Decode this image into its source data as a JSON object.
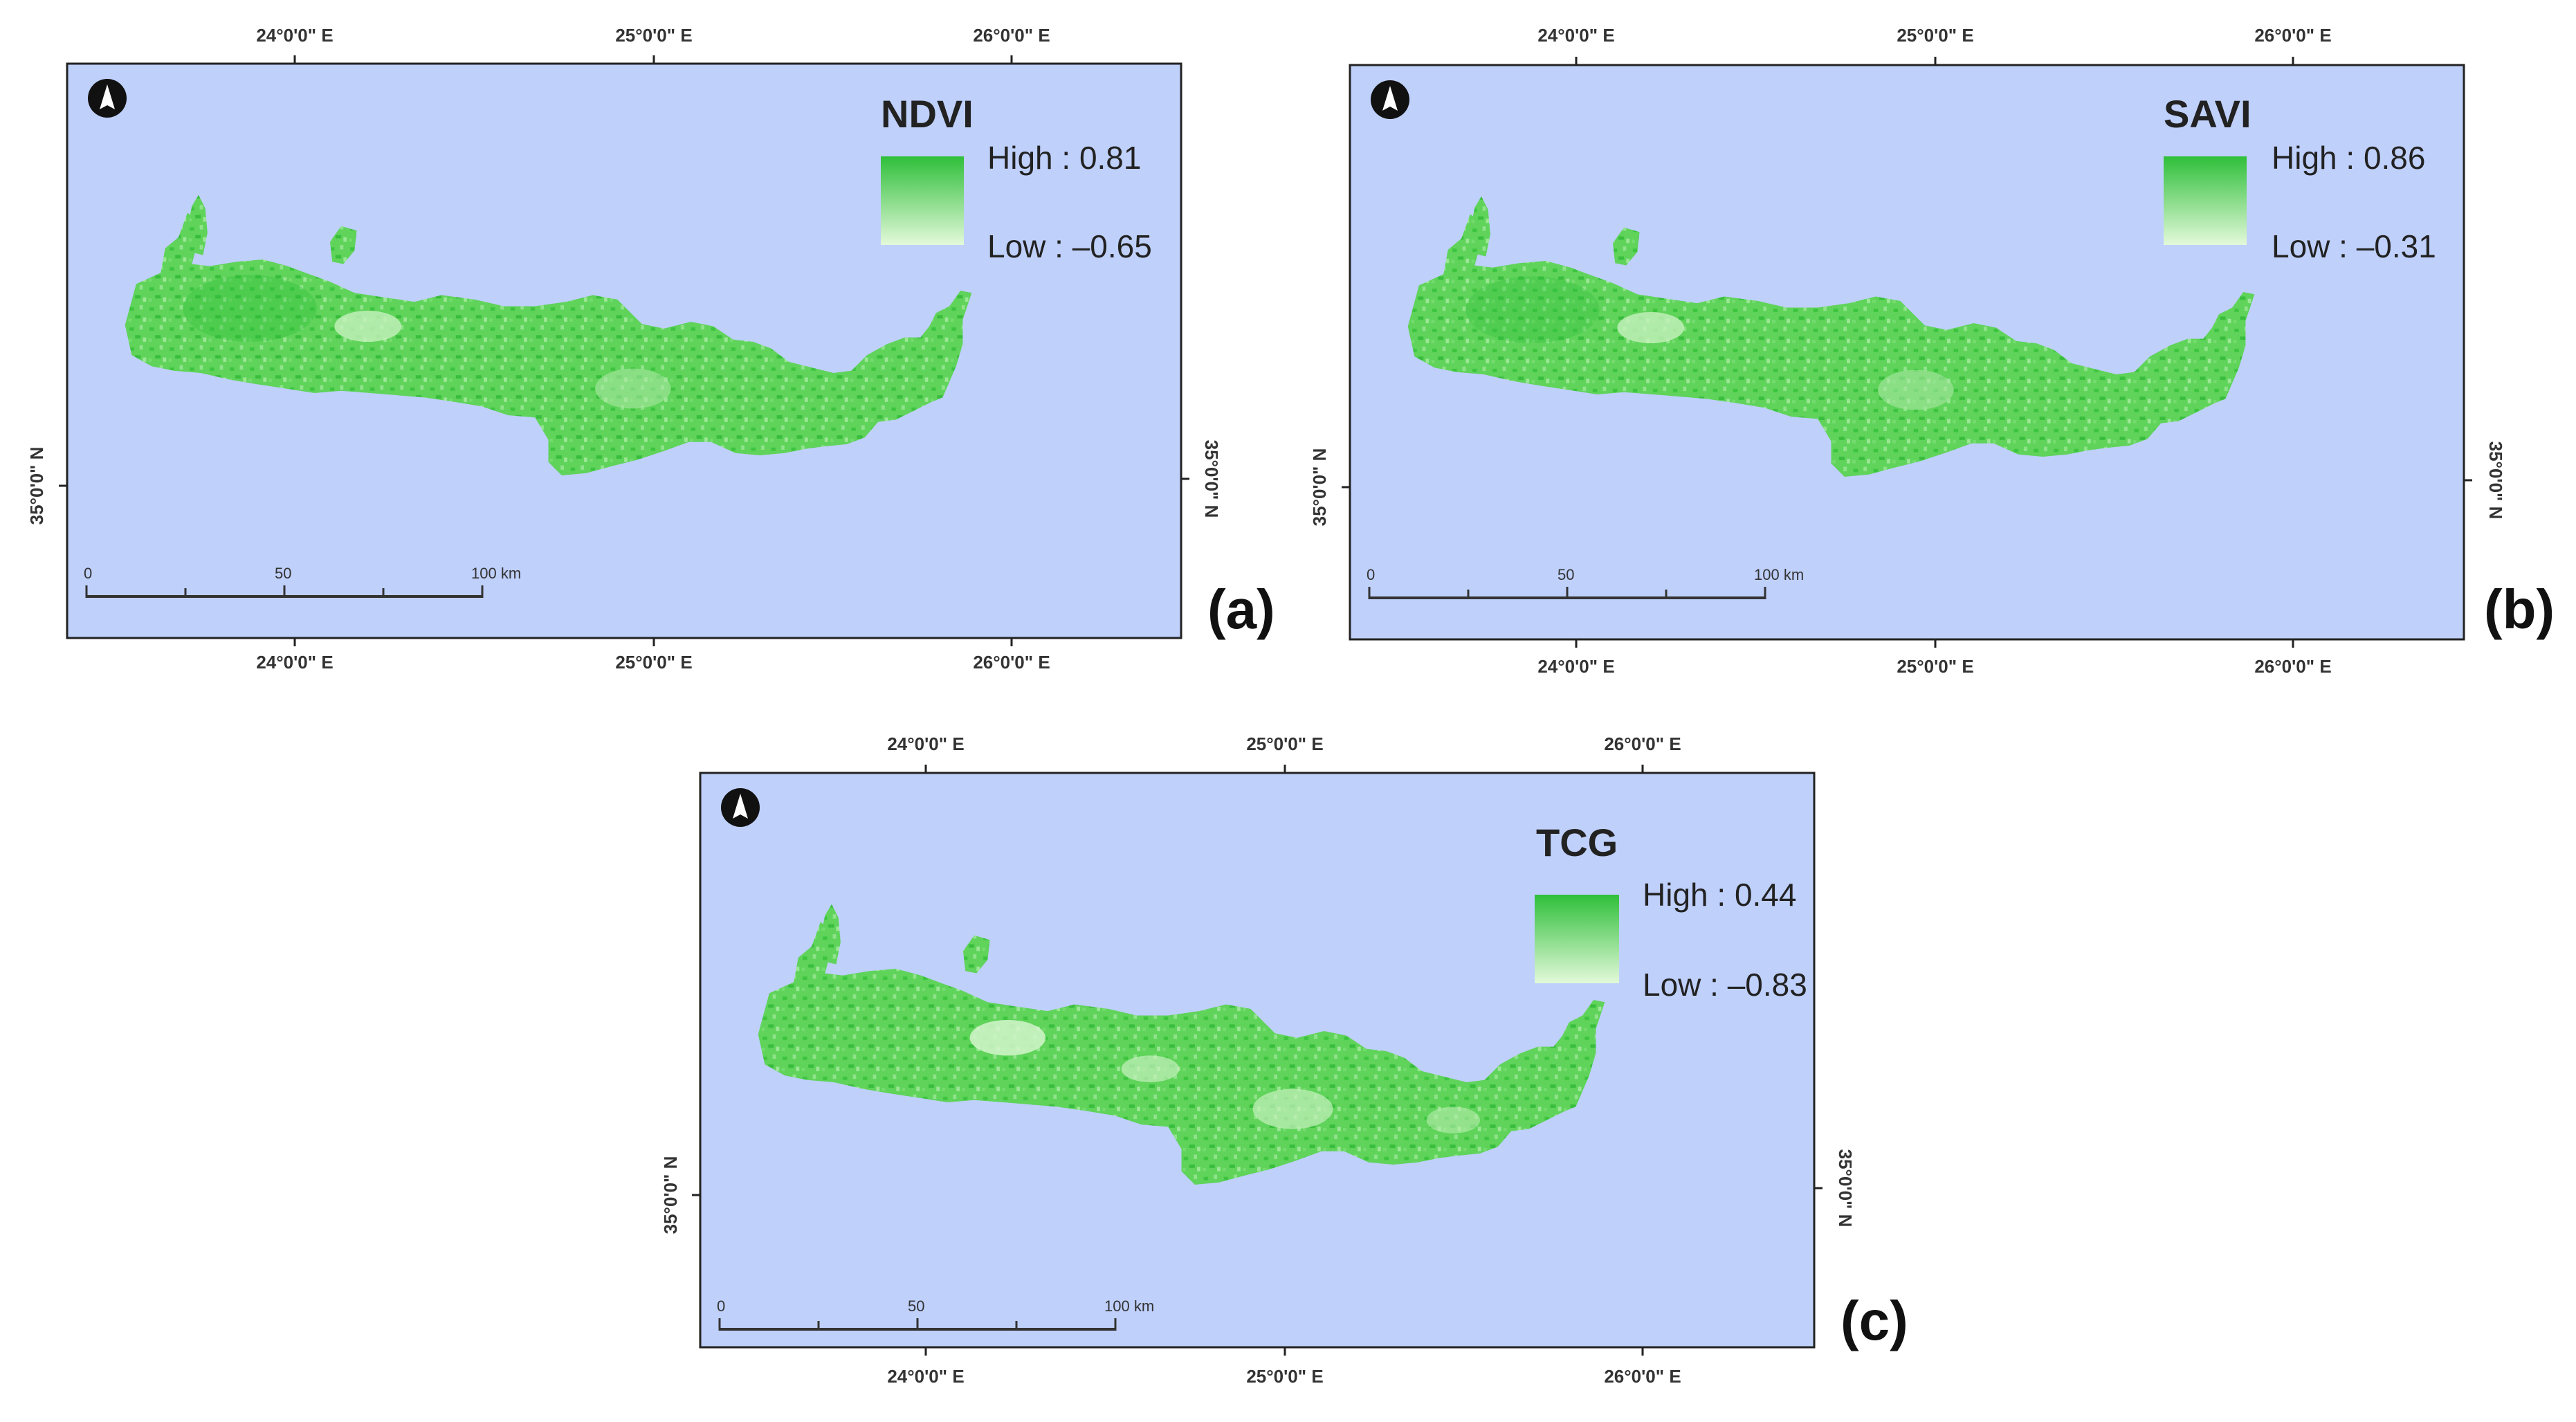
{
  "colors": {
    "sea": "#bfd0fb",
    "land_high": "#2fbf3a",
    "land_mid": "#6fd866",
    "land_low": "#dff7d6",
    "frame": "#222222"
  },
  "axes": {
    "longitude_ticks": [
      "24°0'0\" E",
      "25°0'0\" E",
      "26°0'0\" E"
    ],
    "latitude_tick": "35°0'0\" N"
  },
  "scale_bar": {
    "labels": [
      "0",
      "50",
      "100 km"
    ]
  },
  "north_arrow_icon": "north-arrow-icon",
  "panels": [
    {
      "id": "a",
      "tag": "(a)",
      "index": "NDVI",
      "high_label": "High : 0.81",
      "low_label": "Low : –0.65",
      "high": 0.81,
      "low": -0.65
    },
    {
      "id": "b",
      "tag": "(b)",
      "index": "SAVI",
      "high_label": "High : 0.86",
      "low_label": "Low : –0.31",
      "high": 0.86,
      "low": -0.31
    },
    {
      "id": "c",
      "tag": "(c)",
      "index": "TCG",
      "high_label": "High : 0.44",
      "low_label": "Low : –0.83",
      "high": 0.44,
      "low": -0.83
    }
  ]
}
